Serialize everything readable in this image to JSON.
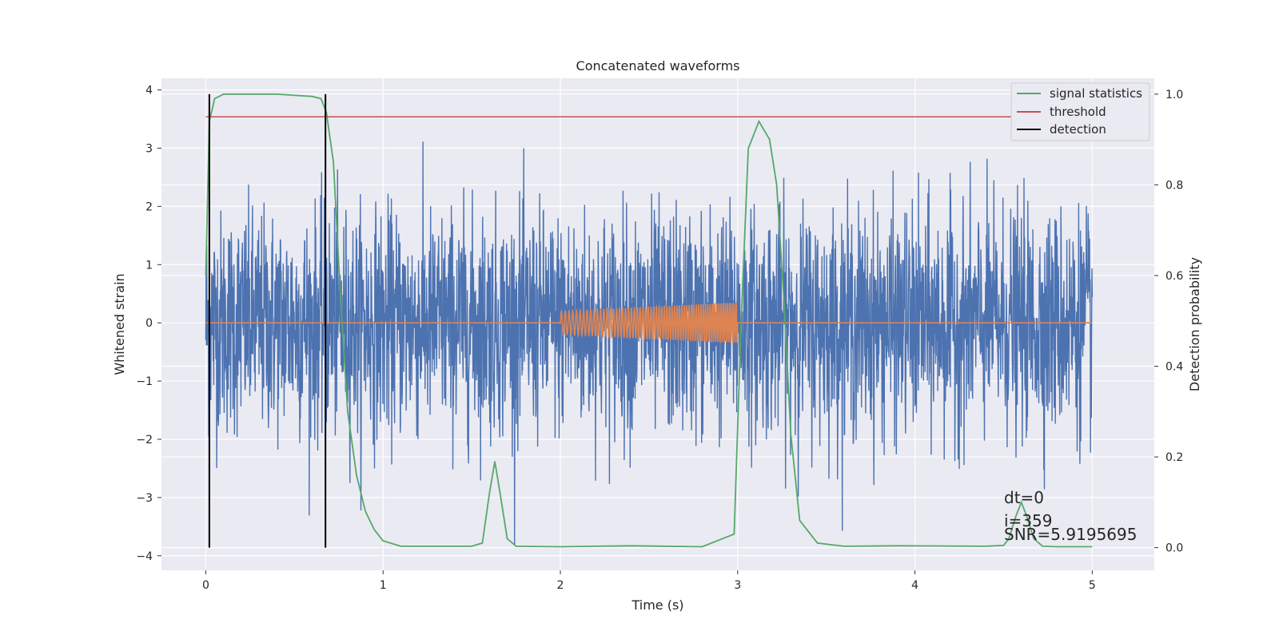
{
  "chart_data": {
    "type": "line",
    "title": "Concatenated waveforms",
    "xlabel": "Time (s)",
    "ylabel": "Whitened strain",
    "y2label": "Detection probability",
    "xlim": [
      -0.25,
      5.35
    ],
    "ylim": [
      -4.25,
      4.2
    ],
    "y2lim": [
      -0.05,
      1.035
    ],
    "x_ticks": [
      0,
      1,
      2,
      3,
      4,
      5
    ],
    "y_ticks": [
      -4,
      -3,
      -2,
      -1,
      0,
      1,
      2,
      3,
      4
    ],
    "y2_ticks": [
      0.0,
      0.2,
      0.4,
      0.6,
      0.8,
      1.0
    ],
    "x_tick_labels": [
      "0",
      "1",
      "2",
      "3",
      "4",
      "5"
    ],
    "y_tick_labels": [
      "−4",
      "−3",
      "−2",
      "−1",
      "0",
      "1",
      "2",
      "3",
      "4"
    ],
    "y2_tick_labels": [
      "0.0",
      "0.2",
      "0.4",
      "0.6",
      "0.8",
      "1.0"
    ],
    "grid": true,
    "legend_position": "top-right",
    "series": [
      {
        "name": "",
        "axis": "left",
        "color": "#4c72b0",
        "kind": "noise",
        "description_values": {
          "x_start": 0,
          "x_end": 5,
          "typical_amplitude": 1.0,
          "max": 3.85,
          "min": -3.9
        }
      },
      {
        "name": "",
        "axis": "left",
        "color": "#dd8452",
        "kind": "injected-chirp",
        "description_values": {
          "flat_value": 0,
          "chirp_start": 2.0,
          "chirp_end": 3.0,
          "amplitude_start": 0.2,
          "amplitude_end": 0.35
        }
      },
      {
        "name": "signal statistics",
        "axis": "right",
        "color": "#55a868",
        "x": [
          0.0,
          0.02,
          0.05,
          0.1,
          0.2,
          0.4,
          0.6,
          0.65,
          0.68,
          0.72,
          0.76,
          0.8,
          0.85,
          0.9,
          0.95,
          1.0,
          1.1,
          1.5,
          1.56,
          1.6,
          1.63,
          1.66,
          1.7,
          1.75,
          2.0,
          2.4,
          2.8,
          2.98,
          3.02,
          3.06,
          3.12,
          3.18,
          3.22,
          3.26,
          3.3,
          3.35,
          3.45,
          3.6,
          3.9,
          4.4,
          4.5,
          4.53,
          4.57,
          4.6,
          4.63,
          4.67,
          4.72,
          4.8,
          5.0
        ],
        "y": [
          0.6,
          0.94,
          0.99,
          1.0,
          1.0,
          1.0,
          0.995,
          0.99,
          0.96,
          0.85,
          0.55,
          0.3,
          0.16,
          0.08,
          0.04,
          0.015,
          0.003,
          0.003,
          0.01,
          0.12,
          0.19,
          0.12,
          0.02,
          0.003,
          0.002,
          0.004,
          0.002,
          0.03,
          0.5,
          0.88,
          0.94,
          0.9,
          0.8,
          0.55,
          0.25,
          0.06,
          0.01,
          0.003,
          0.004,
          0.003,
          0.005,
          0.02,
          0.07,
          0.1,
          0.07,
          0.02,
          0.003,
          0.002,
          0.002
        ]
      },
      {
        "name": "threshold",
        "axis": "right",
        "color": "#c44e52",
        "x": [
          0,
          5.1
        ],
        "y": [
          0.95,
          0.95
        ]
      },
      {
        "name": "detection",
        "axis": "right",
        "color": "#000000",
        "kind": "vertical-lines",
        "x": [
          0.02,
          0.675
        ],
        "y_range": [
          0.0,
          1.0
        ]
      }
    ],
    "annotations": [
      {
        "text": "dt=0"
      },
      {
        "text": "i=359"
      },
      {
        "text": "SNR=5.9195695"
      }
    ]
  }
}
